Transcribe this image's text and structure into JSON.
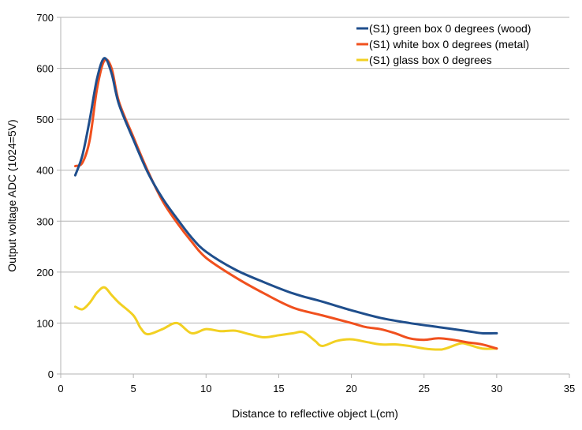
{
  "chart_data": {
    "type": "line",
    "title": "",
    "xlabel": "Distance to reflective object L(cm)",
    "ylabel": "Output voltage ADC (1024=5V)",
    "xlim": [
      0,
      35
    ],
    "ylim": [
      0,
      700
    ],
    "x_ticks": [
      0,
      5,
      10,
      15,
      20,
      25,
      30,
      35
    ],
    "y_ticks": [
      0,
      100,
      200,
      300,
      400,
      500,
      600,
      700
    ],
    "grid": "horizontal",
    "legend_position": "top-right",
    "series": [
      {
        "name": "(S1) green box 0 degrees (wood)",
        "color": "#1f4e8c",
        "points": [
          [
            1,
            390
          ],
          [
            1.5,
            430
          ],
          [
            2,
            500
          ],
          [
            2.5,
            580
          ],
          [
            3,
            620
          ],
          [
            3.5,
            590
          ],
          [
            4,
            530
          ],
          [
            5,
            460
          ],
          [
            6,
            395
          ],
          [
            7,
            345
          ],
          [
            8,
            305
          ],
          [
            9,
            268
          ],
          [
            10,
            240
          ],
          [
            12,
            205
          ],
          [
            14,
            180
          ],
          [
            16,
            158
          ],
          [
            18,
            142
          ],
          [
            20,
            125
          ],
          [
            22,
            110
          ],
          [
            24,
            100
          ],
          [
            26,
            92
          ],
          [
            28,
            84
          ],
          [
            29,
            80
          ],
          [
            30,
            80
          ]
        ]
      },
      {
        "name": "(S1) white box 0 degrees (metal)",
        "color": "#f0501e",
        "points": [
          [
            1,
            408
          ],
          [
            1.5,
            415
          ],
          [
            2,
            460
          ],
          [
            2.5,
            560
          ],
          [
            3,
            615
          ],
          [
            3.5,
            600
          ],
          [
            4,
            535
          ],
          [
            5,
            465
          ],
          [
            6,
            398
          ],
          [
            7,
            340
          ],
          [
            8,
            297
          ],
          [
            9,
            260
          ],
          [
            10,
            228
          ],
          [
            12,
            190
          ],
          [
            14,
            158
          ],
          [
            16,
            130
          ],
          [
            18,
            115
          ],
          [
            20,
            100
          ],
          [
            21,
            92
          ],
          [
            22,
            88
          ],
          [
            23,
            80
          ],
          [
            24,
            70
          ],
          [
            25,
            67
          ],
          [
            26,
            70
          ],
          [
            27,
            67
          ],
          [
            28,
            62
          ],
          [
            29,
            58
          ],
          [
            30,
            50
          ]
        ]
      },
      {
        "name": "(S1) glass box 0 degrees",
        "color": "#f2d022",
        "points": [
          [
            1,
            132
          ],
          [
            1.5,
            127
          ],
          [
            2,
            140
          ],
          [
            2.5,
            160
          ],
          [
            3,
            170
          ],
          [
            3.5,
            155
          ],
          [
            4,
            140
          ],
          [
            5,
            115
          ],
          [
            5.5,
            90
          ],
          [
            6,
            78
          ],
          [
            7,
            88
          ],
          [
            8,
            100
          ],
          [
            9,
            80
          ],
          [
            10,
            88
          ],
          [
            11,
            84
          ],
          [
            12,
            85
          ],
          [
            13,
            78
          ],
          [
            14,
            72
          ],
          [
            15,
            76
          ],
          [
            16,
            80
          ],
          [
            16.7,
            82
          ],
          [
            17.5,
            65
          ],
          [
            18,
            55
          ],
          [
            19,
            65
          ],
          [
            20,
            68
          ],
          [
            21,
            63
          ],
          [
            22,
            58
          ],
          [
            23,
            58
          ],
          [
            24,
            55
          ],
          [
            25,
            50
          ],
          [
            26,
            48
          ],
          [
            26.5,
            50
          ],
          [
            27.5,
            60
          ],
          [
            28,
            58
          ],
          [
            29,
            50
          ],
          [
            30,
            50
          ]
        ]
      }
    ]
  }
}
